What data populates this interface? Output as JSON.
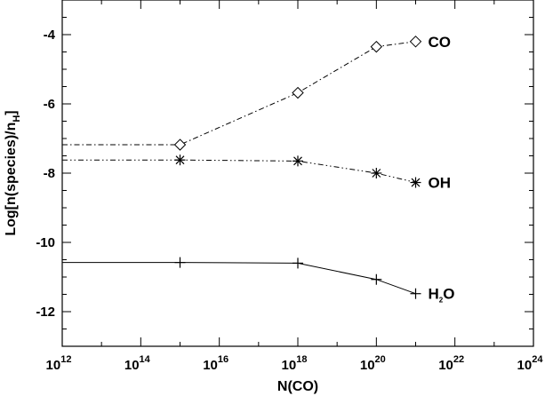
{
  "chart_data": {
    "type": "line",
    "xlabel": "N(CO)",
    "ylabel_main": "Log[n(species)/n",
    "ylabel_sub": "H",
    "ylabel_close": "]",
    "x_scale": "log",
    "xlim": [
      1000000000000.0,
      1e+24
    ],
    "ylim": [
      -13,
      -3
    ],
    "x_ticks": [
      {
        "base": "10",
        "exp": "12"
      },
      {
        "base": "10",
        "exp": "14"
      },
      {
        "base": "10",
        "exp": "16"
      },
      {
        "base": "10",
        "exp": "18"
      },
      {
        "base": "10",
        "exp": "20"
      },
      {
        "base": "10",
        "exp": "22"
      },
      {
        "base": "10",
        "exp": "24"
      }
    ],
    "y_ticks": [
      "-4",
      "-6",
      "-8",
      "-10",
      "-12"
    ],
    "grid": false,
    "series": [
      {
        "label_main": "CO",
        "label_sub": "",
        "label_tail": "",
        "marker": "diamond",
        "line_style": "dash-dot",
        "x": [
          1000000000000.0,
          1000000000000000.0,
          1e+18,
          1e+20,
          1e+21
        ],
        "y": [
          -7.18,
          -7.18,
          -5.68,
          -4.35,
          -4.2
        ]
      },
      {
        "label_main": "OH",
        "label_sub": "",
        "label_tail": "",
        "marker": "asterisk",
        "line_style": "dash-dot-dot",
        "x": [
          1000000000000.0,
          1000000000000000.0,
          1e+18,
          1e+20,
          1e+21
        ],
        "y": [
          -7.62,
          -7.62,
          -7.65,
          -8.0,
          -8.27
        ]
      },
      {
        "label_main": "H",
        "label_sub": "2",
        "label_tail": "O",
        "marker": "plus",
        "line_style": "solid",
        "x": [
          1000000000000.0,
          1000000000000000.0,
          1e+18,
          1e+20,
          1e+21
        ],
        "y": [
          -10.58,
          -10.58,
          -10.6,
          -11.07,
          -11.48
        ]
      }
    ]
  }
}
